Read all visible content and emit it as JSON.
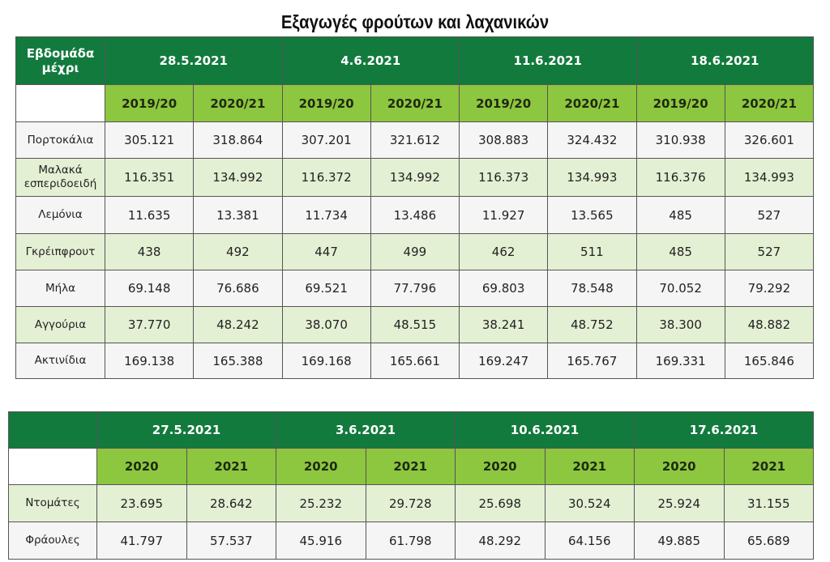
{
  "title": "Εξαγωγές φρούτων και λαχανικών",
  "fruits_table": {
    "corner_label": "Εβδομάδα μέχρι",
    "weeks": [
      "28.5.2021",
      "4.6.2021",
      "11.6.2021",
      "18.6.2021"
    ],
    "seasons": [
      "2019/20",
      "2020/21"
    ],
    "rows": [
      {
        "label": "Πορτοκάλια",
        "values": [
          "305.121",
          "318.864",
          "307.201",
          "321.612",
          "308.883",
          "324.432",
          "310.938",
          "326.601"
        ]
      },
      {
        "label": "Μαλακά εσπεριδοειδή",
        "values": [
          "116.351",
          "134.992",
          "116.372",
          "134.992",
          "116.373",
          "134.993",
          "116.376",
          "134.993"
        ]
      },
      {
        "label": "Λεμόνια",
        "values": [
          "11.635",
          "13.381",
          "11.734",
          "13.486",
          "11.927",
          "13.565",
          "485",
          "527"
        ]
      },
      {
        "label": "Γκρέιπφρουτ",
        "values": [
          "438",
          "492",
          "447",
          "499",
          "462",
          "511",
          "485",
          "527"
        ]
      },
      {
        "label": "Μήλα",
        "values": [
          "69.148",
          "76.686",
          "69.521",
          "77.796",
          "69.803",
          "78.548",
          "70.052",
          "79.292"
        ]
      },
      {
        "label": "Αγγούρια",
        "values": [
          "37.770",
          "48.242",
          "38.070",
          "48.515",
          "38.241",
          "48.752",
          "38.300",
          "48.882"
        ]
      },
      {
        "label": "Ακτινίδια",
        "values": [
          "169.138",
          "165.388",
          "169.168",
          "165.661",
          "169.247",
          "165.767",
          "169.331",
          "165.846"
        ]
      }
    ]
  },
  "vegetables_table": {
    "corner_label": "",
    "weeks": [
      "27.5.2021",
      "3.6.2021",
      "10.6.2021",
      "17.6.2021"
    ],
    "seasons": [
      "2020",
      "2021"
    ],
    "rows": [
      {
        "label": "Ντομάτες",
        "values": [
          "23.695",
          "28.642",
          "25.232",
          "29.728",
          "25.698",
          "30.524",
          "25.924",
          "31.155"
        ]
      },
      {
        "label": "Φράουλες",
        "values": [
          "41.797",
          "57.537",
          "45.916",
          "61.798",
          "48.292",
          "64.156",
          "49.885",
          "65.689"
        ]
      }
    ]
  },
  "colors": {
    "header_dark_green": "#127a3d",
    "header_light_green": "#8dc63f",
    "row_tint": "#e4f0d4",
    "row_plain": "#f5f5f5"
  }
}
